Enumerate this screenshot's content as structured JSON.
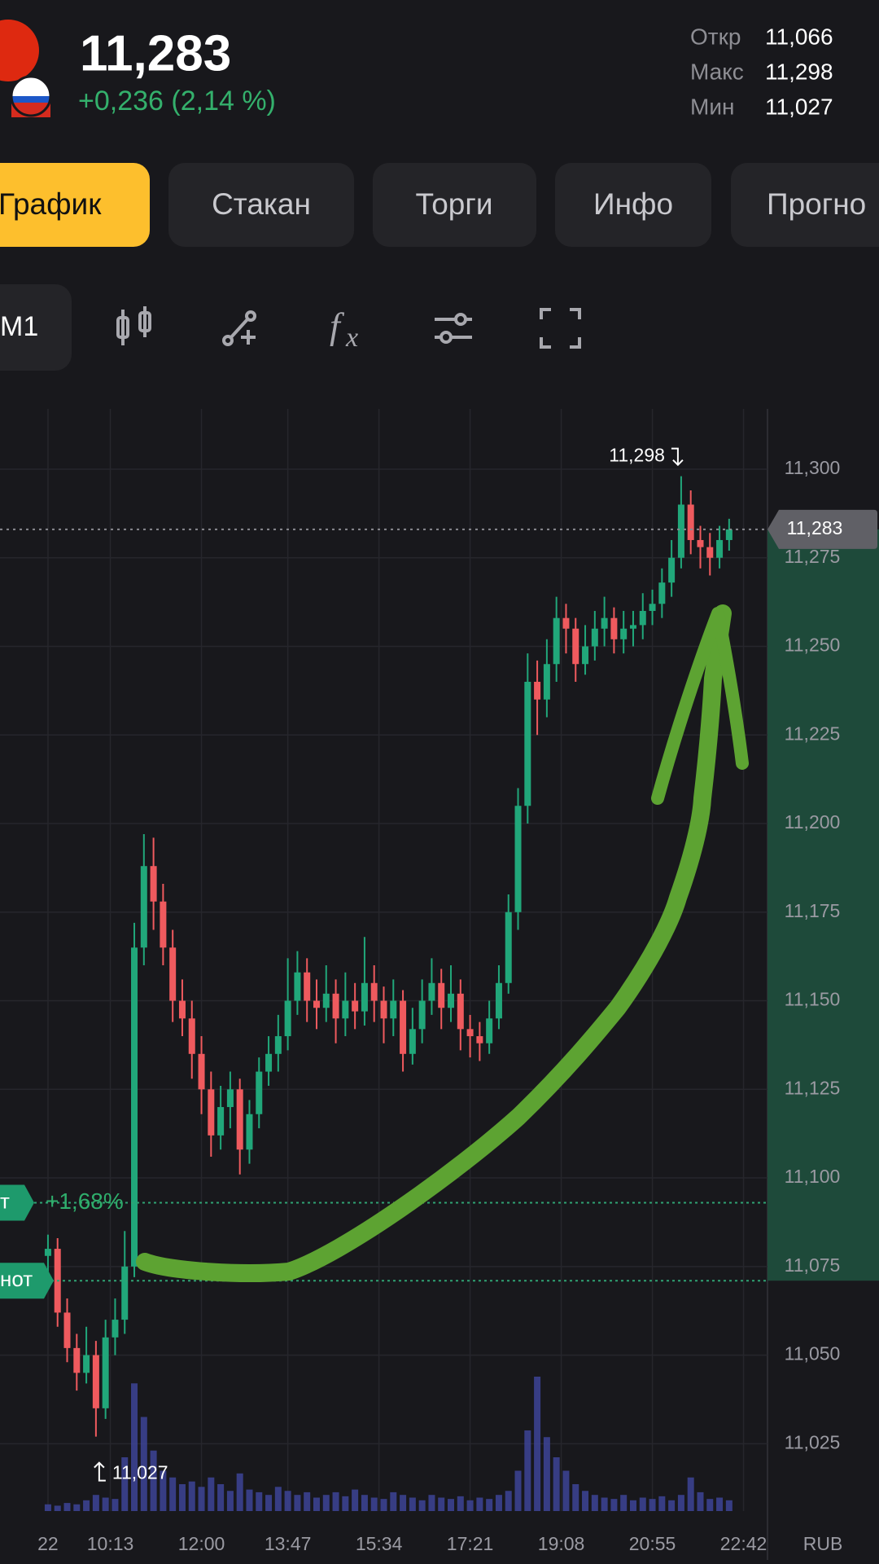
{
  "header": {
    "price": "11,283",
    "change": "+0,236 (2,14 %)",
    "stats": [
      {
        "label": "Откр",
        "value": "11,066"
      },
      {
        "label": "Макс",
        "value": "11,298"
      },
      {
        "label": "Мин",
        "value": "11,027"
      }
    ]
  },
  "tabs": [
    "График",
    "Стакан",
    "Торги",
    "Инфо",
    "Прогно"
  ],
  "toolbar": {
    "interval": "M1"
  },
  "chart_data": {
    "type": "candlestick",
    "x": [
      5,
      6,
      7,
      8,
      9,
      10,
      11,
      12,
      13,
      14,
      15,
      16,
      17,
      18,
      19,
      20,
      21,
      22,
      23,
      24,
      25,
      26,
      27,
      28,
      29,
      30,
      31,
      32,
      33,
      34,
      35,
      36,
      37,
      38,
      39,
      40,
      41,
      42,
      43,
      44,
      45,
      46,
      47,
      48,
      49,
      50,
      51,
      52,
      53,
      54,
      55,
      56,
      57,
      58,
      59,
      60,
      61,
      62,
      63,
      64,
      65,
      66,
      67,
      68,
      69,
      70,
      71,
      72,
      73,
      74,
      75,
      76
    ],
    "open": [
      11078,
      11080,
      11062,
      11052,
      11045,
      11050,
      11035,
      11055,
      11060,
      11075,
      11165,
      11188,
      11178,
      11165,
      11150,
      11145,
      11135,
      11125,
      11112,
      11120,
      11125,
      11108,
      11118,
      11130,
      11135,
      11140,
      11150,
      11158,
      11150,
      11148,
      11152,
      11145,
      11150,
      11147,
      11155,
      11150,
      11145,
      11150,
      11135,
      11142,
      11150,
      11155,
      11148,
      11152,
      11142,
      11140,
      11138,
      11145,
      11155,
      11175,
      11205,
      11240,
      11235,
      11245,
      11258,
      11255,
      11245,
      11250,
      11255,
      11258,
      11252,
      11255,
      11256,
      11260,
      11262,
      11268,
      11275,
      11290,
      11280,
      11278,
      11275,
      11280
    ],
    "high": [
      11084,
      11083,
      11066,
      11056,
      11058,
      11054,
      11060,
      11066,
      11085,
      11172,
      11197,
      11196,
      11183,
      11170,
      11156,
      11150,
      11140,
      11130,
      11126,
      11130,
      11128,
      11122,
      11134,
      11140,
      11146,
      11162,
      11164,
      11162,
      11156,
      11160,
      11156,
      11158,
      11155,
      11168,
      11160,
      11154,
      11156,
      11153,
      11148,
      11156,
      11162,
      11159,
      11160,
      11156,
      11146,
      11144,
      11150,
      11160,
      11180,
      11210,
      11248,
      11246,
      11252,
      11264,
      11262,
      11258,
      11256,
      11260,
      11264,
      11261,
      11260,
      11260,
      11265,
      11266,
      11272,
      11280,
      11298,
      11294,
      11284,
      11282,
      11284,
      11286
    ],
    "low": [
      11072,
      11058,
      11048,
      11040,
      11042,
      11027,
      11032,
      11050,
      11056,
      11072,
      11160,
      11170,
      11160,
      11144,
      11140,
      11128,
      11118,
      11106,
      11108,
      11114,
      11101,
      11104,
      11114,
      11126,
      11130,
      11136,
      11146,
      11144,
      11142,
      11144,
      11138,
      11140,
      11142,
      11143,
      11144,
      11138,
      11140,
      11130,
      11132,
      11138,
      11146,
      11142,
      11144,
      11136,
      11134,
      11133,
      11135,
      11142,
      11152,
      11170,
      11200,
      11225,
      11230,
      11240,
      11248,
      11240,
      11242,
      11246,
      11250,
      11248,
      11248,
      11250,
      11252,
      11256,
      11258,
      11264,
      11272,
      11276,
      11272,
      11270,
      11272,
      11277
    ],
    "close": [
      11080,
      11062,
      11052,
      11045,
      11050,
      11035,
      11055,
      11060,
      11075,
      11165,
      11188,
      11178,
      11165,
      11150,
      11145,
      11135,
      11125,
      11112,
      11120,
      11125,
      11108,
      11118,
      11130,
      11135,
      11140,
      11150,
      11158,
      11150,
      11148,
      11152,
      11145,
      11150,
      11147,
      11155,
      11150,
      11145,
      11150,
      11135,
      11142,
      11150,
      11155,
      11148,
      11152,
      11142,
      11140,
      11138,
      11145,
      11155,
      11175,
      11205,
      11240,
      11235,
      11245,
      11258,
      11255,
      11245,
      11250,
      11255,
      11258,
      11252,
      11255,
      11256,
      11260,
      11262,
      11268,
      11275,
      11290,
      11280,
      11278,
      11275,
      11280,
      11283
    ],
    "volume": [
      5,
      4,
      6,
      5,
      8,
      12,
      10,
      9,
      40,
      95,
      70,
      45,
      30,
      25,
      20,
      22,
      18,
      25,
      20,
      15,
      28,
      16,
      14,
      12,
      18,
      15,
      12,
      14,
      10,
      12,
      14,
      11,
      16,
      12,
      10,
      9,
      14,
      12,
      10,
      8,
      12,
      10,
      9,
      11,
      8,
      10,
      9,
      12,
      15,
      30,
      60,
      100,
      55,
      40,
      30,
      20,
      15,
      12,
      10,
      9,
      12,
      8,
      10,
      9,
      11,
      8,
      12,
      25,
      14,
      9,
      10,
      8
    ],
    "xlim": [
      0,
      80
    ],
    "xticks": [
      {
        "value": 5,
        "label": "22"
      },
      {
        "value": 11.5,
        "label": "10:13"
      },
      {
        "value": 21,
        "label": "12:00"
      },
      {
        "value": 30,
        "label": "13:47"
      },
      {
        "value": 39.5,
        "label": "15:34"
      },
      {
        "value": 49,
        "label": "17:21"
      },
      {
        "value": 58.5,
        "label": "19:08"
      },
      {
        "value": 68,
        "label": "20:55"
      },
      {
        "value": 77.5,
        "label": "22:42"
      }
    ],
    "ylim": [
      11006,
      11317
    ],
    "yticks": [
      {
        "value": 11025,
        "label": "11,025"
      },
      {
        "value": 11050,
        "label": "11,050"
      },
      {
        "value": 11075,
        "label": "11,075"
      },
      {
        "value": 11100,
        "label": "11,100"
      },
      {
        "value": 11125,
        "label": "11,125"
      },
      {
        "value": 11150,
        "label": "11,150"
      },
      {
        "value": 11175,
        "label": "11,175"
      },
      {
        "value": 11200,
        "label": "11,200"
      },
      {
        "value": 11225,
        "label": "11,225"
      },
      {
        "value": 11250,
        "label": "11,250"
      },
      {
        "value": 11275,
        "label": "11,275"
      },
      {
        "value": 11300,
        "label": "11,300"
      }
    ],
    "currency": "RUB",
    "current_price": {
      "value": 11283,
      "label": "11,283"
    },
    "max": {
      "value": 11298,
      "label": "11,298"
    },
    "min": {
      "value": 11027,
      "label": "11,027"
    },
    "levels": [
      {
        "tag": "т",
        "label": "+1,68%",
        "value": 11093
      },
      {
        "tag": "нот",
        "value": 11071
      }
    ],
    "colors": {
      "up": "#21a77a",
      "down": "#ef5a5e",
      "volume": "#3d4496"
    },
    "grid": true
  }
}
